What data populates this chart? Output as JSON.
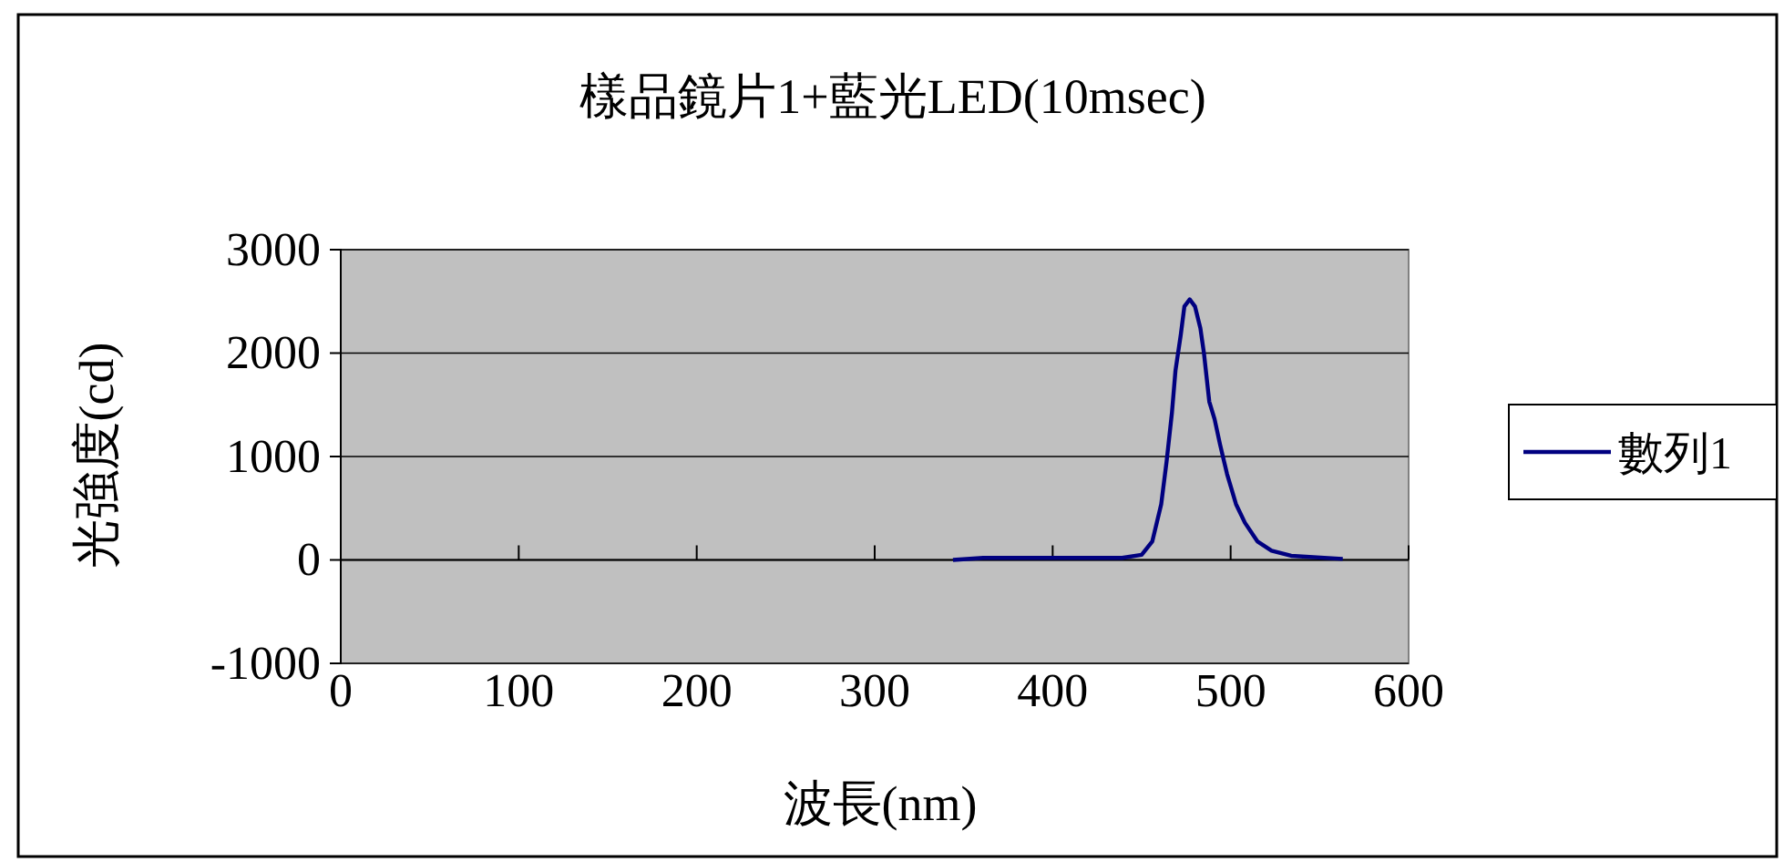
{
  "chart_data": {
    "type": "line",
    "title": "樣品鏡片1+藍光LED(10msec)",
    "xlabel": "波長(nm)",
    "ylabel": "光強度(cd)",
    "xlim": [
      0,
      600
    ],
    "xticks": [
      0,
      100,
      200,
      300,
      400,
      500,
      600
    ],
    "ylim": [
      -1000,
      3000
    ],
    "yticks": [
      -1000,
      0,
      1000,
      2000,
      3000
    ],
    "grid": "y",
    "legend": "right",
    "series": [
      {
        "name": "數列1",
        "color": "#000080",
        "x": [
          344,
          361,
          400,
          439,
          450,
          456,
          461,
          464,
          467,
          469,
          472,
          474,
          477,
          480,
          483,
          485,
          488,
          491,
          494,
          498,
          503,
          508,
          515,
          523,
          534,
          563
        ],
        "values": [
          0,
          20,
          20,
          20,
          50,
          180,
          540,
          950,
          1420,
          1830,
          2180,
          2450,
          2520,
          2450,
          2240,
          2000,
          1530,
          1360,
          1120,
          830,
          540,
          360,
          180,
          90,
          40,
          10
        ]
      }
    ]
  }
}
